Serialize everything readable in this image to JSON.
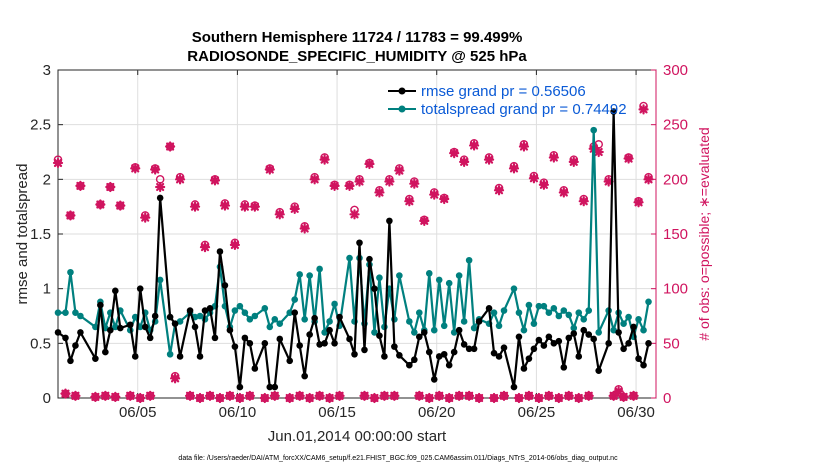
{
  "chart_data": {
    "type": "line",
    "title": [
      "Southern Hemisphere 11724 / 11783 = 99.499%",
      "RADIOSONDE_SPECIFIC_HUMIDITY @ 525 hPa"
    ],
    "xlabel": "Jun.01,2014 00:00:00 start",
    "ylabel": "rmse and totalspread",
    "y2label": "# of obs: o=possible; ∗=evaluated",
    "x_range": [
      1,
      31
    ],
    "ylim": [
      0,
      3
    ],
    "y2lim": [
      0,
      300
    ],
    "x_ticks": [
      5,
      10,
      15,
      20,
      25,
      30
    ],
    "x_tick_labels": [
      "06/05",
      "06/10",
      "06/15",
      "06/20",
      "06/25",
      "06/30"
    ],
    "y_ticks": [
      0,
      0.5,
      1,
      1.5,
      2,
      2.5,
      3
    ],
    "y_tick_labels": [
      "0",
      "0.5",
      "1",
      "1.5",
      "2",
      "2.5",
      "3"
    ],
    "y2_ticks": [
      0,
      50,
      100,
      150,
      200,
      250,
      300
    ],
    "y2_tick_labels": [
      "0",
      "50",
      "100",
      "150",
      "200",
      "250",
      "300"
    ],
    "grid": true,
    "legend_position": "top-right",
    "series": [
      {
        "name": "rmse",
        "legend": "rmse grand pr = 0.56506",
        "color": "#000000",
        "x": [
          1.0,
          1.375,
          1.625,
          1.875,
          2.125,
          2.875,
          3.125,
          3.375,
          3.625,
          3.875,
          4.125,
          4.625,
          4.875,
          5.125,
          5.375,
          5.625,
          5.875,
          6.125,
          6.625,
          6.875,
          7.125,
          7.625,
          7.875,
          8.125,
          8.375,
          8.625,
          8.875,
          9.125,
          9.375,
          9.625,
          9.875,
          10.125,
          10.375,
          10.625,
          10.875,
          11.375,
          11.625,
          11.875,
          12.125,
          12.625,
          12.875,
          13.125,
          13.375,
          13.625,
          13.875,
          14.125,
          14.375,
          14.625,
          14.875,
          15.125,
          15.625,
          15.875,
          16.125,
          16.375,
          16.625,
          16.875,
          17.125,
          17.375,
          17.625,
          17.875,
          18.125,
          18.625,
          18.875,
          19.125,
          19.375,
          19.625,
          19.875,
          20.125,
          20.375,
          20.625,
          20.875,
          21.125,
          21.375,
          21.625,
          21.875,
          22.125,
          22.625,
          22.875,
          23.125,
          23.375,
          23.875,
          24.125,
          24.375,
          24.625,
          24.875,
          25.125,
          25.375,
          25.625,
          25.875,
          26.125,
          26.375,
          26.625,
          26.875,
          27.125,
          27.375,
          27.625,
          27.875,
          28.125,
          28.625,
          28.875,
          29.125,
          29.375,
          29.625,
          29.875,
          30.125,
          30.375,
          30.625
        ],
        "y": [
          0.6,
          0.55,
          0.34,
          0.48,
          0.6,
          0.36,
          0.85,
          0.42,
          0.62,
          0.98,
          0.64,
          0.67,
          0.38,
          1.0,
          0.65,
          0.55,
          0.75,
          1.83,
          0.74,
          0.68,
          0.38,
          0.8,
          0.65,
          0.38,
          0.8,
          0.82,
          0.55,
          1.34,
          1.03,
          0.62,
          0.47,
          0.1,
          0.55,
          0.5,
          0.27,
          0.5,
          0.1,
          0.1,
          0.54,
          0.34,
          0.78,
          0.48,
          0.2,
          0.58,
          0.73,
          0.49,
          0.5,
          0.62,
          0.5,
          0.74,
          0.54,
          0.4,
          1.42,
          0.44,
          1.27,
          1.0,
          0.57,
          0.38,
          1.62,
          0.47,
          0.39,
          0.3,
          0.35,
          0.56,
          0.6,
          0.42,
          0.17,
          0.38,
          0.4,
          0.3,
          0.42,
          0.62,
          0.49,
          0.45,
          0.45,
          0.7,
          0.82,
          0.41,
          0.38,
          0.46,
          0.1,
          0.56,
          0.27,
          0.36,
          0.45,
          0.53,
          0.48,
          0.56,
          0.5,
          0.52,
          0.28,
          0.55,
          0.59,
          0.38,
          0.62,
          0.58,
          0.54,
          0.25,
          0.5,
          2.62,
          0.6,
          0.45,
          0.5,
          0.65,
          0.36,
          0.3,
          0.5
        ]
      },
      {
        "name": "totalspread",
        "legend": "totalspread grand pr = 0.74492",
        "color": "#00807f",
        "x": [
          1.0,
          1.375,
          1.625,
          1.875,
          2.125,
          2.875,
          3.125,
          3.375,
          3.625,
          3.875,
          4.125,
          4.625,
          4.875,
          5.125,
          5.375,
          5.625,
          5.875,
          6.125,
          6.625,
          6.875,
          7.125,
          7.625,
          7.875,
          8.125,
          8.375,
          8.625,
          8.875,
          9.125,
          9.375,
          9.625,
          9.875,
          10.125,
          10.375,
          10.625,
          10.875,
          11.375,
          11.625,
          11.875,
          12.125,
          12.625,
          12.875,
          13.125,
          13.375,
          13.625,
          13.875,
          14.125,
          14.375,
          14.625,
          14.875,
          15.125,
          15.625,
          15.875,
          16.125,
          16.375,
          16.625,
          16.875,
          17.125,
          17.375,
          17.625,
          17.875,
          18.125,
          18.625,
          18.875,
          19.125,
          19.375,
          19.625,
          19.875,
          20.125,
          20.375,
          20.625,
          20.875,
          21.125,
          21.375,
          21.625,
          21.875,
          22.125,
          22.625,
          22.875,
          23.125,
          23.375,
          23.875,
          24.125,
          24.375,
          24.625,
          24.875,
          25.125,
          25.375,
          25.625,
          25.875,
          26.125,
          26.375,
          26.625,
          26.875,
          27.125,
          27.375,
          27.625,
          27.875,
          28.125,
          28.625,
          28.875,
          29.125,
          29.375,
          29.625,
          29.875,
          30.125,
          30.375,
          30.625
        ],
        "y": [
          0.78,
          0.78,
          1.15,
          0.78,
          0.75,
          0.65,
          0.88,
          0.64,
          0.78,
          0.65,
          0.8,
          0.62,
          0.74,
          0.65,
          0.78,
          0.62,
          0.7,
          1.08,
          0.4,
          0.68,
          0.7,
          0.78,
          0.74,
          0.75,
          0.72,
          0.78,
          0.84,
          1.2,
          0.84,
          0.65,
          0.8,
          0.84,
          0.78,
          0.72,
          0.75,
          0.82,
          0.65,
          0.72,
          0.68,
          0.78,
          0.9,
          1.13,
          0.72,
          1.12,
          0.7,
          1.18,
          0.6,
          0.7,
          0.86,
          0.66,
          1.28,
          0.7,
          1.28,
          0.68,
          1.22,
          0.6,
          1.1,
          0.65,
          1.0,
          0.72,
          1.12,
          0.7,
          0.6,
          0.78,
          0.62,
          1.14,
          0.62,
          1.08,
          0.66,
          1.05,
          0.6,
          1.12,
          0.7,
          1.26,
          0.64,
          0.72,
          0.68,
          0.78,
          0.66,
          0.8,
          1.0,
          0.78,
          0.62,
          0.85,
          0.68,
          0.84,
          0.84,
          0.78,
          0.82,
          0.75,
          0.8,
          0.76,
          0.64,
          0.78,
          0.72,
          0.8,
          2.45,
          0.6,
          0.8,
          0.62,
          0.78,
          0.68,
          0.74,
          0.56,
          0.72,
          0.62,
          0.88
        ]
      },
      {
        "name": "obs possible",
        "axis": "right",
        "marker": "o",
        "color": "#d0145f",
        "x": [
          1.0,
          1.375,
          1.625,
          1.875,
          2.125,
          2.875,
          3.125,
          3.375,
          3.625,
          3.875,
          4.125,
          4.625,
          4.875,
          5.125,
          5.375,
          5.625,
          5.875,
          6.125,
          6.625,
          6.875,
          7.125,
          7.625,
          7.875,
          8.125,
          8.375,
          8.625,
          8.875,
          9.125,
          9.375,
          9.625,
          9.875,
          10.125,
          10.375,
          10.625,
          10.875,
          11.375,
          11.625,
          11.875,
          12.125,
          12.625,
          12.875,
          13.125,
          13.375,
          13.625,
          13.875,
          14.125,
          14.375,
          14.625,
          14.875,
          15.125,
          15.625,
          15.875,
          16.125,
          16.375,
          16.625,
          16.875,
          17.125,
          17.375,
          17.625,
          17.875,
          18.125,
          18.625,
          18.875,
          19.125,
          19.375,
          19.625,
          19.875,
          20.125,
          20.375,
          20.625,
          20.875,
          21.125,
          21.375,
          21.625,
          21.875,
          22.125,
          22.625,
          22.875,
          23.125,
          23.375,
          23.875,
          24.125,
          24.375,
          24.625,
          24.875,
          25.125,
          25.375,
          25.625,
          25.875,
          26.125,
          26.375,
          26.625,
          26.875,
          27.125,
          27.375,
          27.625,
          27.875,
          28.125,
          28.625,
          28.875,
          29.125,
          29.375,
          29.625,
          29.875,
          30.125,
          30.375,
          30.625
        ],
        "y": [
          218,
          4,
          167,
          2,
          194,
          1,
          177,
          2,
          193,
          1,
          176,
          2,
          211,
          0,
          167,
          2,
          210,
          200,
          230,
          20,
          202,
          2,
          177,
          0,
          140,
          2,
          200,
          0,
          178,
          2,
          142,
          0,
          177,
          2,
          176,
          0,
          210,
          2,
          170,
          0,
          175,
          2,
          157,
          0,
          202,
          2,
          220,
          0,
          195,
          2,
          195,
          172,
          200,
          2,
          215,
          0,
          190,
          2,
          200,
          2,
          210,
          182,
          198,
          2,
          163,
          0,
          188,
          2,
          183,
          0,
          225,
          2,
          218,
          2,
          233,
          0,
          220,
          0,
          192,
          2,
          212,
          0,
          232,
          2,
          203,
          0,
          197,
          2,
          222,
          0,
          190,
          2,
          218,
          0,
          182,
          2,
          230,
          232,
          200,
          2,
          8,
          1,
          220,
          2,
          180,
          267,
          202
        ],
        "note": "approximate, mixed with near-zero counts"
      },
      {
        "name": "obs evaluated",
        "axis": "right",
        "marker": "*",
        "color": "#d0145f",
        "x": [
          1.0,
          1.375,
          1.625,
          1.875,
          2.125,
          2.875,
          3.125,
          3.375,
          3.625,
          3.875,
          4.125,
          4.625,
          4.875,
          5.125,
          5.375,
          5.625,
          5.875,
          6.125,
          6.625,
          6.875,
          7.125,
          7.625,
          7.875,
          8.125,
          8.375,
          8.625,
          8.875,
          9.125,
          9.375,
          9.625,
          9.875,
          10.125,
          10.375,
          10.625,
          10.875,
          11.375,
          11.625,
          11.875,
          12.125,
          12.625,
          12.875,
          13.125,
          13.375,
          13.625,
          13.875,
          14.125,
          14.375,
          14.625,
          14.875,
          15.125,
          15.625,
          15.875,
          16.125,
          16.375,
          16.625,
          16.875,
          17.125,
          17.375,
          17.625,
          17.875,
          18.125,
          18.625,
          18.875,
          19.125,
          19.375,
          19.625,
          19.875,
          20.125,
          20.375,
          20.625,
          20.875,
          21.125,
          21.375,
          21.625,
          21.875,
          22.125,
          22.625,
          22.875,
          23.125,
          23.375,
          23.875,
          24.125,
          24.375,
          24.625,
          24.875,
          25.125,
          25.375,
          25.625,
          25.875,
          26.125,
          26.375,
          26.625,
          26.875,
          27.125,
          27.375,
          27.625,
          27.875,
          28.125,
          28.625,
          28.875,
          29.125,
          29.375,
          29.625,
          29.875,
          30.125,
          30.375,
          30.625
        ],
        "y": [
          215,
          4,
          167,
          2,
          194,
          1,
          177,
          2,
          193,
          1,
          176,
          2,
          210,
          0,
          165,
          2,
          209,
          193,
          230,
          18,
          200,
          2,
          175,
          0,
          138,
          2,
          199,
          0,
          176,
          2,
          140,
          0,
          175,
          2,
          175,
          0,
          209,
          2,
          168,
          0,
          173,
          2,
          155,
          0,
          200,
          2,
          218,
          0,
          194,
          2,
          194,
          168,
          198,
          2,
          214,
          0,
          188,
          2,
          198,
          2,
          208,
          180,
          196,
          2,
          162,
          0,
          186,
          2,
          182,
          0,
          224,
          2,
          216,
          2,
          231,
          0,
          218,
          0,
          190,
          2,
          210,
          0,
          230,
          2,
          201,
          0,
          195,
          2,
          220,
          0,
          188,
          2,
          216,
          0,
          180,
          2,
          228,
          225,
          198,
          2,
          6,
          1,
          219,
          2,
          179,
          264,
          200
        ],
        "note": "approximate"
      }
    ]
  },
  "footer": "data file: /Users/raeder/DAI/ATM_forcXX/CAM6_setup/f.e21.FHIST_BGC.f09_025.CAM6assim.011/Diags_NTrS_2014-06/obs_diag_output.nc"
}
